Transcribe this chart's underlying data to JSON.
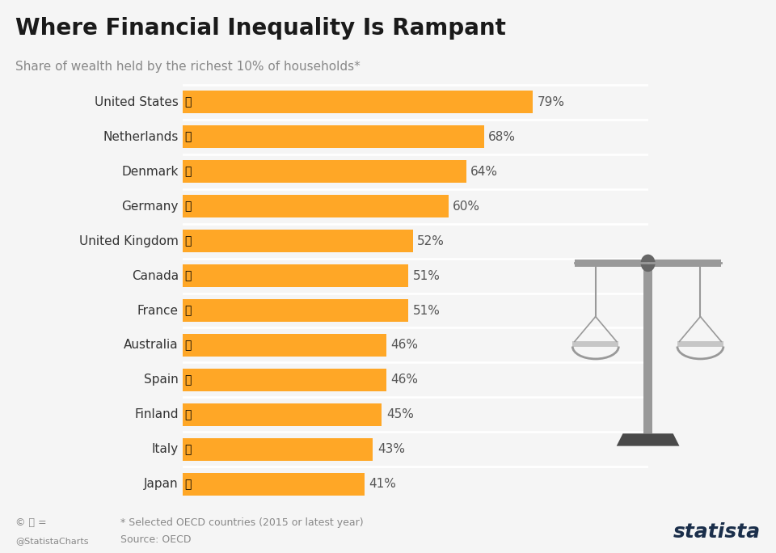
{
  "title": "Where Financial Inequality Is Rampant",
  "subtitle": "Share of wealth held by the richest 10% of households*",
  "countries": [
    "United States",
    "Netherlands",
    "Denmark",
    "Germany",
    "United Kingdom",
    "Canada",
    "France",
    "Australia",
    "Spain",
    "Finland",
    "Italy",
    "Japan"
  ],
  "values": [
    79,
    68,
    64,
    60,
    52,
    51,
    51,
    46,
    46,
    45,
    43,
    41
  ],
  "bar_color": "#FFA726",
  "bg_color": "#F5F5F5",
  "title_color": "#1a1a1a",
  "subtitle_color": "#888888",
  "value_color": "#555555",
  "label_color": "#333333",
  "footer_text1": "* Selected OECD countries (2015 or latest year)",
  "footer_text2": "Source: OECD",
  "bar_height": 0.65,
  "separator_color": "#ffffff",
  "statista_color": "#1a2e4a"
}
